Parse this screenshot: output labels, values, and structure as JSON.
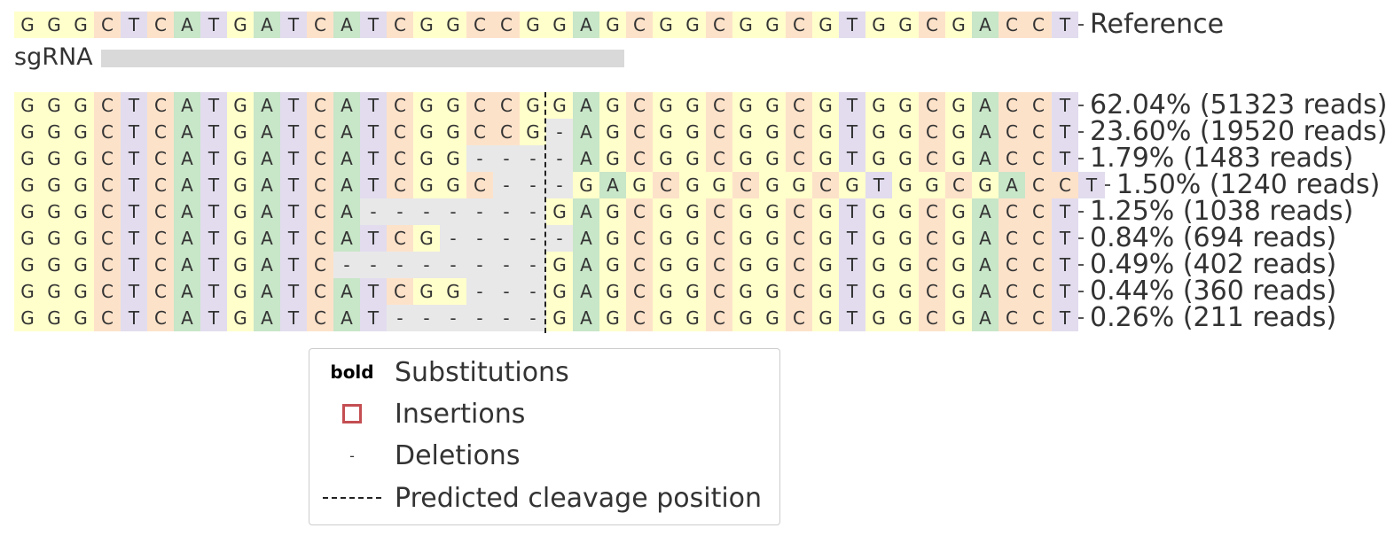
{
  "reference": {
    "sequence": "GGGCTCATGATCATCGGCCGGAGCGGCGGCGTGGCGACCT",
    "label": "Reference"
  },
  "sgrna": {
    "label": "sgRNA"
  },
  "colors": {
    "A": "#c8e6c8",
    "C": "#fde2ca",
    "G": "#ffffcc",
    "T": "#e2dcee",
    "gap": "#e8e8e8",
    "sgrna_bar": "#d9d9d9",
    "insertion": "#c44e52"
  },
  "alleles": [
    {
      "sequence": "GGGCTCATGATCATCGGCCGGAGCGGCGGCGTGGCGACCT",
      "label": "62.04% (51323 reads)"
    },
    {
      "sequence": "GGGCTCATGATCATCGGCCG-AGCGGCGGCGTGGCGACCT",
      "label": "23.60% (19520 reads)"
    },
    {
      "sequence": "GGGCTCATGATCATCGG----AGCGGCGGCGTGGCGACCT",
      "label": "1.79% (1483 reads)"
    },
    {
      "sequence": "GGGCTCATGATCATCGGC---GAGCGGCGGCGTGGCGACCT",
      "label": "1.50% (1240 reads)"
    },
    {
      "sequence": "GGGCTCATGATCA-------GAGCGGCGGCGTGGCGACCT",
      "label": "1.25% (1038 reads)"
    },
    {
      "sequence": "GGGCTCATGATCATCG-----AGCGGCGGCGTGGCGACCT",
      "label": "0.84% (694 reads)"
    },
    {
      "sequence": "GGGCTCATGATC--------GAGCGGCGGCGTGGCGACCT",
      "label": "0.49% (402 reads)"
    },
    {
      "sequence": "GGGCTCATGATCATCGG---GAGCGGCGGCGTGGCGACCT",
      "label": "0.44% (360 reads)"
    },
    {
      "sequence": "GGGCTCATGATCAT------GAGCGGCGGCGTGGCGACCT",
      "label": "0.26% (211 reads)"
    }
  ],
  "legend": {
    "bold_symbol": "bold",
    "substitutions": "Substitutions",
    "insertions": "Insertions",
    "deletions_symbol": "-",
    "deletions": "Deletions",
    "cleavage": "Predicted cleavage position"
  }
}
